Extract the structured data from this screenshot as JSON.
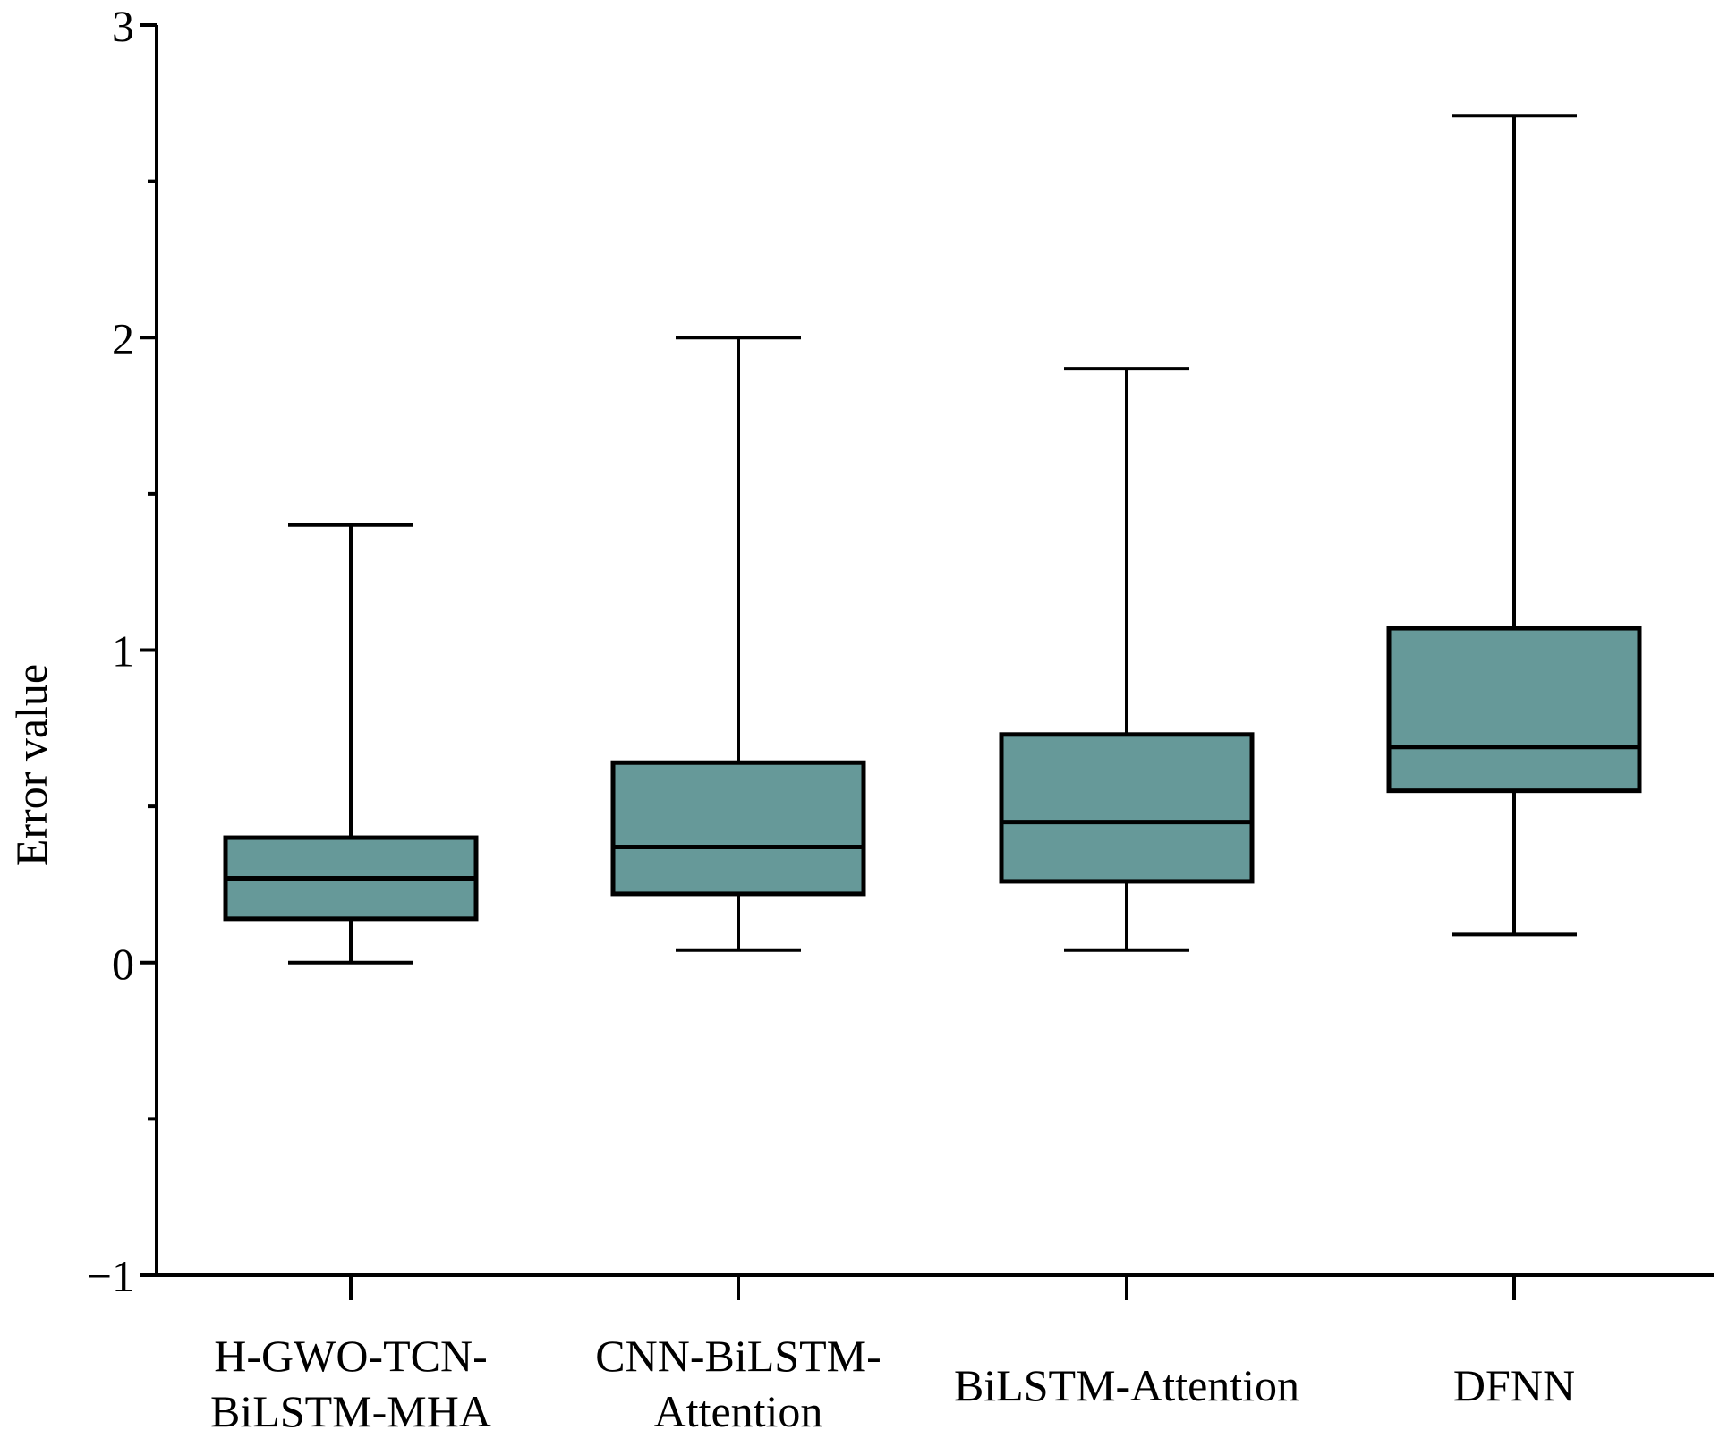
{
  "chart_data": {
    "type": "box",
    "ylabel": "Error value",
    "xlabel": "",
    "ylim": [
      -1,
      3
    ],
    "yticks_major": [
      -1,
      0,
      1,
      2,
      3
    ],
    "yticks_minor": [
      -0.5,
      0.5,
      1.5,
      2.5
    ],
    "grid": false,
    "box_color": "#669999",
    "categories": [
      [
        "H-GWO-TCN-",
        "BiLSTM-MHA"
      ],
      [
        "CNN-BiLSTM-",
        "Attention"
      ],
      [
        "BiLSTM-Attention"
      ],
      [
        "DFNN"
      ]
    ],
    "boxes": [
      {
        "min": 0.0,
        "q1": 0.14,
        "median": 0.27,
        "q3": 0.4,
        "max": 1.4
      },
      {
        "min": 0.04,
        "q1": 0.22,
        "median": 0.37,
        "q3": 0.64,
        "max": 2.0
      },
      {
        "min": 0.04,
        "q1": 0.26,
        "median": 0.45,
        "q3": 0.73,
        "max": 1.9
      },
      {
        "min": 0.09,
        "q1": 0.55,
        "median": 0.69,
        "q3": 1.07,
        "max": 2.71
      }
    ]
  }
}
